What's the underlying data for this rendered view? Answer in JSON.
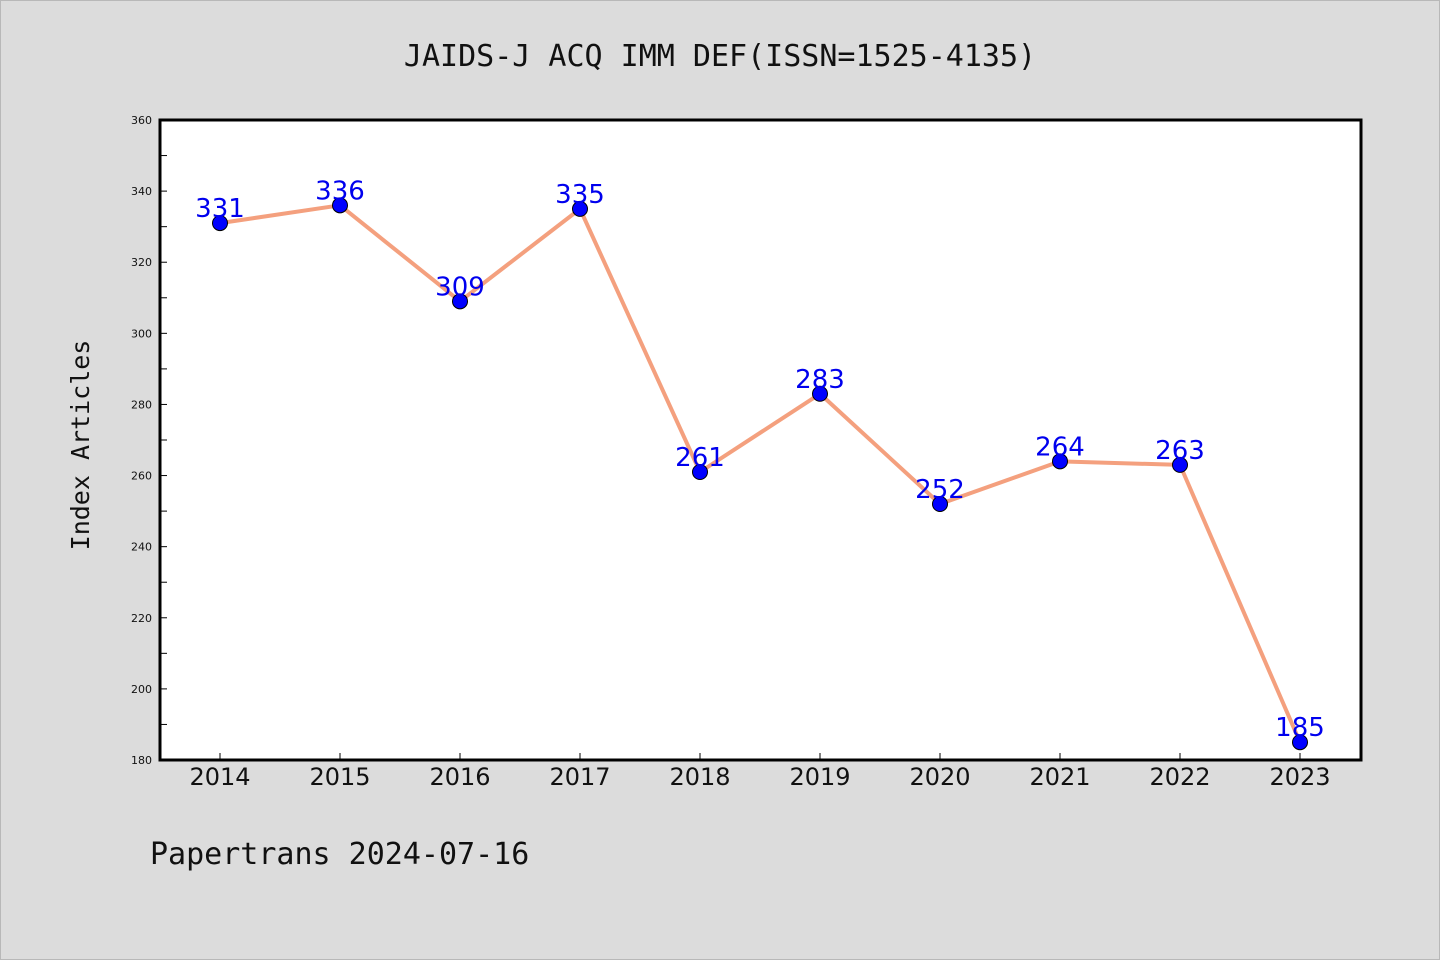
{
  "footer": "Papertrans 2024-07-16",
  "chart_data": {
    "type": "line",
    "title": "JAIDS-J ACQ IMM DEF(ISSN=1525-4135)",
    "xlabel": "",
    "ylabel": "Index Articles",
    "categories": [
      "2014",
      "2015",
      "2016",
      "2017",
      "2018",
      "2019",
      "2020",
      "2021",
      "2022",
      "2023"
    ],
    "values": [
      331,
      336,
      309,
      335,
      261,
      283,
      252,
      264,
      263,
      185
    ],
    "ylim": [
      180,
      360
    ],
    "yticks": [
      180,
      200,
      220,
      240,
      260,
      280,
      300,
      320,
      340,
      360
    ],
    "grid": false,
    "legend": "none",
    "colors": {
      "line": "#f4a07e",
      "marker": "#0000ff",
      "data_label": "#0000ee",
      "plot_background": "#ffffff",
      "page_background": "#dcdcdc"
    }
  }
}
